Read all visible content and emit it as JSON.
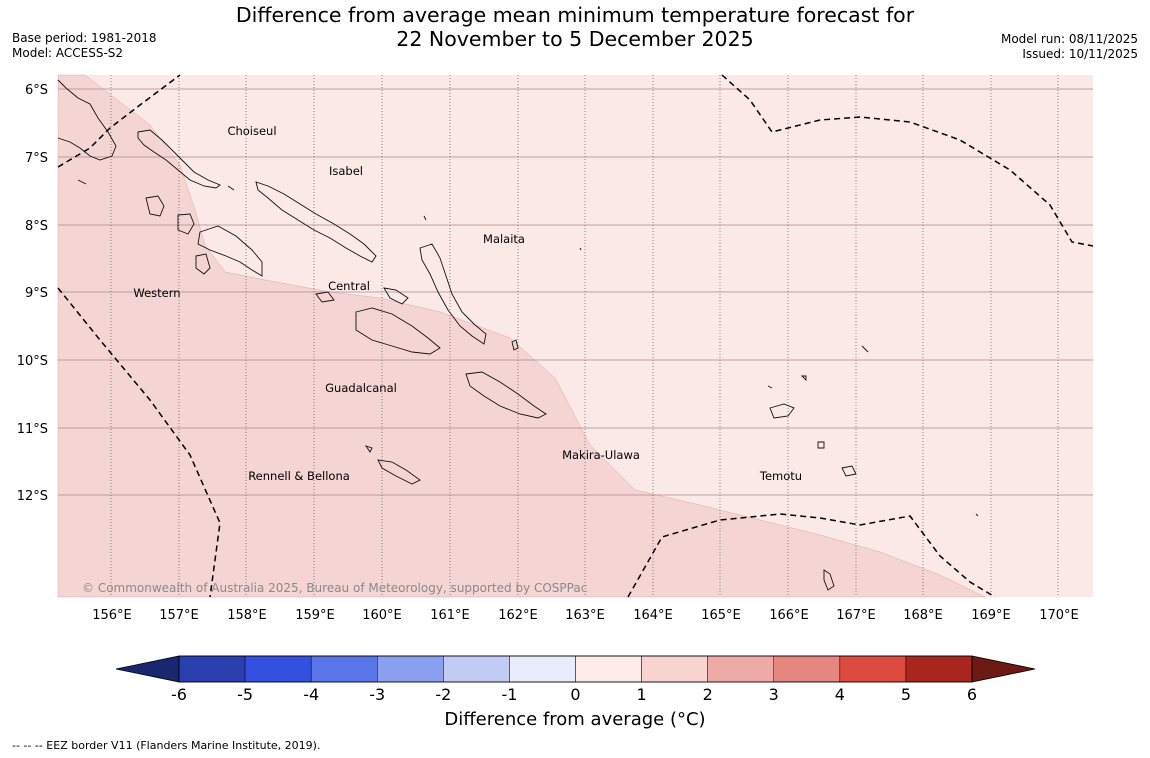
{
  "title": {
    "line1": "Difference from average mean minimum temperature forecast for",
    "line2": "22 November to 5 December 2025"
  },
  "meta_left": {
    "base_period": "Base period: 1981-2018",
    "model": "Model: ACCESS-S2"
  },
  "meta_right": {
    "model_run": "Model run: 08/11/2025",
    "issued": "Issued: 10/11/2025"
  },
  "map": {
    "lat_labels": [
      "6°S",
      "7°S",
      "8°S",
      "9°S",
      "10°S",
      "11°S",
      "12°S"
    ],
    "lon_labels": [
      "156°E",
      "157°E",
      "158°E",
      "159°E",
      "160°E",
      "161°E",
      "162°E",
      "163°E",
      "164°E",
      "165°E",
      "166°E",
      "167°E",
      "168°E",
      "169°E",
      "170°E"
    ],
    "region_labels": [
      "Choiseul",
      "Isabel",
      "Malaita",
      "Western",
      "Central",
      "Guadalcanal",
      "Makira-Ulawa",
      "Rennell & Bellona",
      "Temotu"
    ],
    "copyright": "© Commonwealth of Australia 2025, Bureau of Meteorology, supported by COSPPac",
    "shading": {
      "lighter_band_value_range": [
        0,
        1
      ],
      "darker_band_value_range": [
        1,
        2
      ],
      "color_0_1": "#fbe9e8",
      "color_1_2": "#f5d5d3"
    }
  },
  "colorbar": {
    "ticks": [
      "-6",
      "-5",
      "-4",
      "-3",
      "-2",
      "-1",
      "0",
      "1",
      "2",
      "3",
      "4",
      "5",
      "6"
    ],
    "colors": [
      "#2a3fb0",
      "#3450e0",
      "#5a75e8",
      "#8a9ff0",
      "#c3cbf5",
      "#e8ecfc",
      "#fdecea",
      "#f7d4d1",
      "#eeaaa7",
      "#e5867f",
      "#dc4a40",
      "#a9261f"
    ],
    "under_color": "#18276e",
    "over_color": "#6e1a14",
    "label": "Difference from average ($^\\circ$C)",
    "label_display": "Difference from average (°C)"
  },
  "footnote": "--  --  -- EEZ border V11 (Flanders Marine Institute, 2019)."
}
